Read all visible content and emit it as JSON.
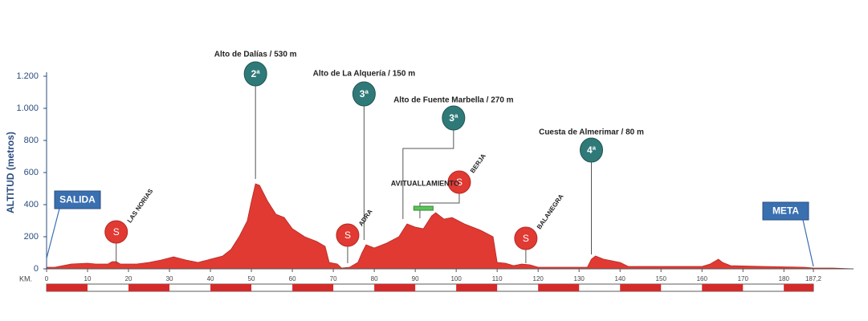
{
  "chart_data": {
    "type": "area",
    "ylabel": "ALTITUD (metros)",
    "xlabel": "KM.",
    "color": "#e03a33",
    "xlim": [
      0,
      197
    ],
    "ylim": [
      0,
      1200
    ],
    "yticks": [
      0,
      200,
      400,
      600,
      800,
      {
        "value": 1000,
        "label": "1.000"
      },
      {
        "value": 1200,
        "label": "1.200"
      }
    ],
    "xticks": [
      0,
      10,
      20,
      30,
      40,
      50,
      60,
      70,
      80,
      90,
      100,
      110,
      120,
      130,
      140,
      150,
      160,
      170,
      180,
      {
        "value": 187.2,
        "label": "187,2"
      }
    ],
    "x": [
      0,
      2,
      4,
      6,
      10,
      12,
      15,
      16,
      17,
      18,
      22,
      25,
      28,
      31,
      34,
      37,
      40,
      43,
      45,
      47,
      49,
      50,
      51,
      52,
      54,
      56,
      58,
      60,
      63,
      66,
      68,
      69,
      71,
      72,
      74,
      76,
      77,
      78,
      80,
      83,
      86,
      88,
      90,
      92,
      94,
      95,
      97,
      99,
      102,
      106,
      109,
      110,
      112,
      114,
      116,
      118,
      120,
      130,
      132,
      133,
      134,
      136,
      140,
      142,
      160,
      162,
      164,
      165,
      167,
      175,
      185,
      187.2,
      192,
      197
    ],
    "values": [
      10,
      10,
      20,
      30,
      35,
      30,
      30,
      45,
      45,
      30,
      30,
      40,
      55,
      75,
      55,
      40,
      60,
      80,
      120,
      200,
      300,
      420,
      530,
      520,
      420,
      340,
      320,
      250,
      200,
      170,
      140,
      40,
      30,
      5,
      10,
      40,
      100,
      150,
      130,
      160,
      200,
      280,
      260,
      250,
      330,
      350,
      310,
      320,
      280,
      240,
      200,
      40,
      35,
      20,
      30,
      25,
      10,
      10,
      10,
      60,
      80,
      60,
      40,
      15,
      15,
      30,
      60,
      40,
      20,
      15,
      10,
      5,
      5,
      0
    ],
    "climbs": [
      {
        "label": "Alto de Dalías / 530 m",
        "category": "2ª",
        "x": 51
      },
      {
        "label": "Alto de La Alquería / 150 m",
        "category": "3ª",
        "x": 77.5
      },
      {
        "label": "Alto de Fuente Marbella / 270 m",
        "category": "3ª",
        "x": 87
      },
      {
        "label": "Cuesta de Almerimar / 80 m",
        "category": "4ª",
        "x": 133
      }
    ],
    "sprints": [
      {
        "label": "LAS NORIAS",
        "symbol": "S",
        "x": 17
      },
      {
        "label": "ADRA",
        "symbol": "S",
        "x": 73.5
      },
      {
        "label": "BERJA",
        "symbol": "S",
        "x": 98
      },
      {
        "label": "BALANEGRA",
        "symbol": "S",
        "x": 117
      }
    ],
    "start": {
      "label": "SALIDA",
      "x": 0
    },
    "finish": {
      "label": "META",
      "x": 187.2
    },
    "feed_zone": {
      "label": "AVITUALLAMIENTO",
      "x": 92
    }
  }
}
